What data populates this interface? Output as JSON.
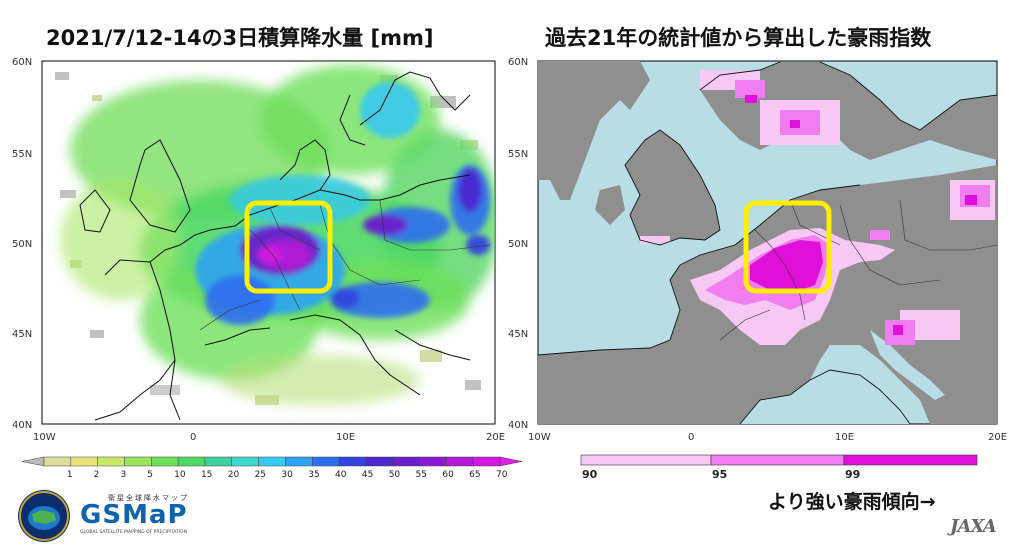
{
  "titles": {
    "left": "2021/7/12-14の3日積算降水量 [mm]",
    "right": "過去21年の統計値から算出した豪雨指数"
  },
  "left_map": {
    "lat_labels": [
      "60N",
      "55N",
      "50N",
      "45N",
      "40N"
    ],
    "lon_labels": [
      "10W",
      "0",
      "10E",
      "20E"
    ],
    "colorbar_labels": [
      "1",
      "2",
      "3",
      "5",
      "10",
      "15",
      "20",
      "25",
      "30",
      "35",
      "40",
      "45",
      "50",
      "55",
      "60",
      "65",
      "70"
    ],
    "colorbar_colors": [
      "#dddd9a",
      "#e9e27a",
      "#c8e86a",
      "#9ae45e",
      "#6ee05a",
      "#4fd865",
      "#3fd0a0",
      "#3fd6d2",
      "#36c8ee",
      "#2ea3f2",
      "#2e6ff0",
      "#3344dd",
      "#4b28d0",
      "#6a20c8",
      "#8a1ad0",
      "#b21ad6",
      "#d01ae0"
    ],
    "underflow_color": "#bbbbbb",
    "overflow_color": "#e020e8",
    "highlight_color": "#ffee00"
  },
  "right_map": {
    "lat_labels": [
      "60N",
      "55N",
      "50N",
      "45N",
      "40N"
    ],
    "lon_labels": [
      "10W",
      "0",
      "10E",
      "20E"
    ],
    "colorbar_labels": [
      "90",
      "95",
      "99"
    ],
    "colorbar_colors": [
      "#f8c8f4",
      "#f07ef0",
      "#e010d8"
    ],
    "land_color": "#8f8f8f",
    "sea_color": "#b8dde5",
    "highlight_color": "#ffee00"
  },
  "caption": "より強い豪雨傾向→",
  "logos": {
    "gsmap_jp": "衛星全球降水マップ",
    "gsmap_word": "GSMaP",
    "gsmap_en": "GLOBAL SATELLITE MAPPING OF PRECIPITATION",
    "jaxa": "JAXA"
  }
}
